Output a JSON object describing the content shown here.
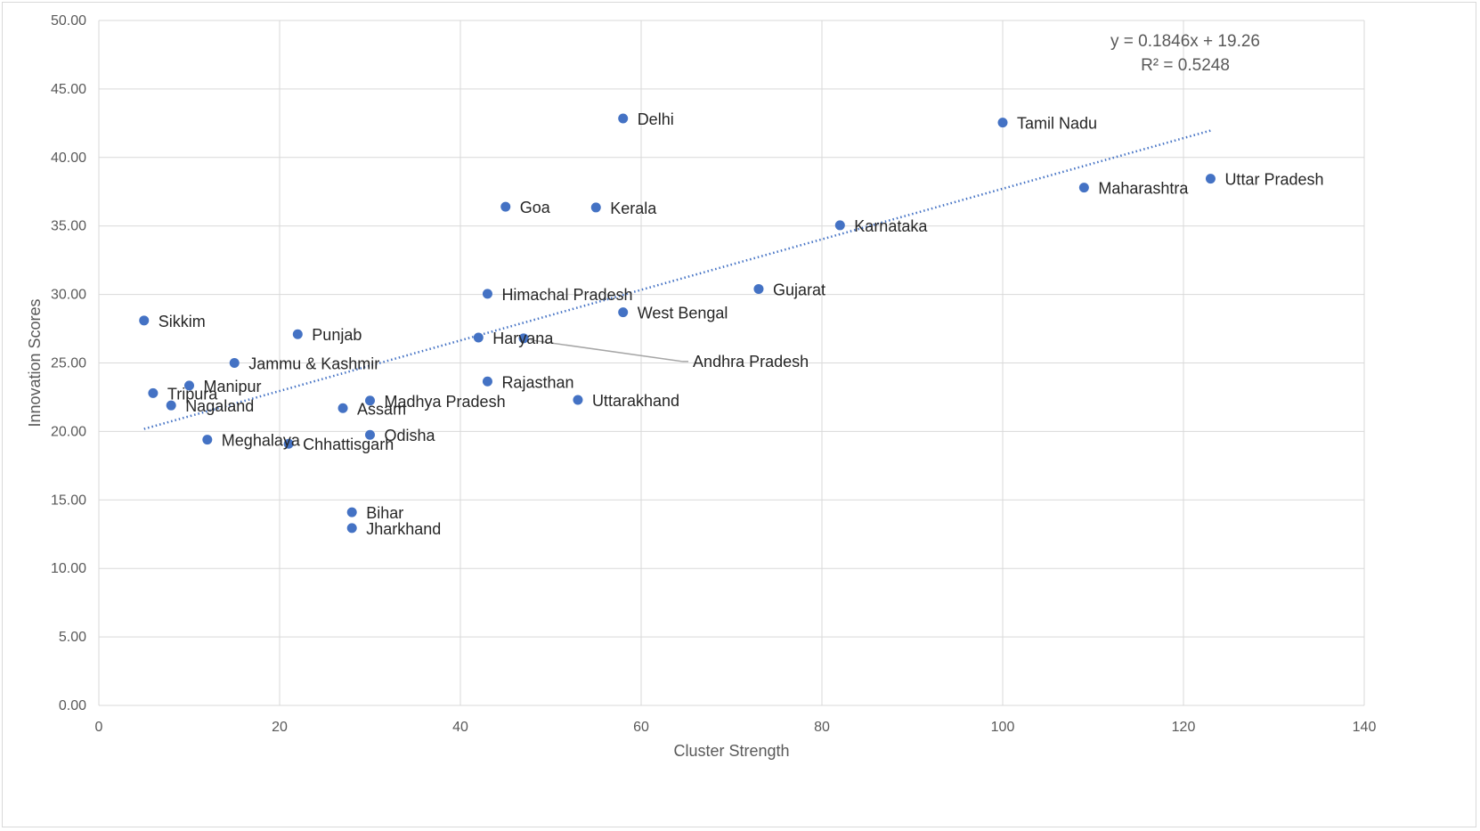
{
  "chart_data": {
    "type": "scatter",
    "title": "",
    "xlabel": "Cluster Strength",
    "ylabel": "Innovation Scores",
    "xlim": [
      0,
      140
    ],
    "ylim": [
      0,
      50
    ],
    "x_ticks": [
      "0",
      "20",
      "40",
      "60",
      "80",
      "100",
      "120",
      "140"
    ],
    "y_ticks": [
      "0.00",
      "5.00",
      "10.00",
      "15.00",
      "20.00",
      "25.00",
      "30.00",
      "35.00",
      "40.00",
      "45.00",
      "50.00"
    ],
    "grid": true,
    "legend": "none",
    "marker_color": "#4472c4",
    "points": [
      {
        "label": "Delhi",
        "x": 58,
        "y": 42.85
      },
      {
        "label": "Tamil Nadu",
        "x": 100,
        "y": 42.55
      },
      {
        "label": "Uttar Pradesh",
        "x": 123,
        "y": 38.45
      },
      {
        "label": "Maharashtra",
        "x": 109,
        "y": 37.8
      },
      {
        "label": "Goa",
        "x": 45,
        "y": 36.4
      },
      {
        "label": "Kerala",
        "x": 55,
        "y": 36.35
      },
      {
        "label": "Karnataka",
        "x": 82,
        "y": 35.05
      },
      {
        "label": "Gujarat",
        "x": 73,
        "y": 30.4
      },
      {
        "label": "Himachal Pradesh",
        "x": 43,
        "y": 30.05
      },
      {
        "label": "West Bengal",
        "x": 58,
        "y": 28.7
      },
      {
        "label": "Sikkim",
        "x": 5,
        "y": 28.1
      },
      {
        "label": "Punjab",
        "x": 22,
        "y": 27.1
      },
      {
        "label": "Haryana",
        "x": 42,
        "y": 26.85
      },
      {
        "label": "Andhra Pradesh",
        "x": 47,
        "y": 26.8
      },
      {
        "label": "Jammu & Kashmir",
        "x": 15,
        "y": 25.0
      },
      {
        "label": "Rajasthan",
        "x": 43,
        "y": 23.65
      },
      {
        "label": "Manipur",
        "x": 10,
        "y": 23.35
      },
      {
        "label": "Tripura",
        "x": 6,
        "y": 22.8
      },
      {
        "label": "Uttarakhand",
        "x": 53,
        "y": 22.3
      },
      {
        "label": "Madhya Pradesh",
        "x": 30,
        "y": 22.25
      },
      {
        "label": "Nagaland",
        "x": 8,
        "y": 21.9
      },
      {
        "label": "Assam",
        "x": 27,
        "y": 21.7
      },
      {
        "label": "Odisha",
        "x": 30,
        "y": 19.75
      },
      {
        "label": "Meghalaya",
        "x": 12,
        "y": 19.4
      },
      {
        "label": "Chhattisgarh",
        "x": 21,
        "y": 19.1
      },
      {
        "label": "Bihar",
        "x": 28,
        "y": 14.1
      },
      {
        "label": "Jharkhand",
        "x": 28,
        "y": 12.95
      }
    ],
    "trendline": {
      "type": "linear",
      "slope": 0.1846,
      "intercept": 19.26,
      "x_range": [
        5,
        123
      ],
      "style": "dotted",
      "color": "#4472c4",
      "equation_text": "y = 0.1846x + 19.26",
      "r2_text": "R² = 0.5248"
    },
    "annotations": [
      {
        "label": "Andhra Pradesh",
        "leader_line": true
      }
    ]
  }
}
